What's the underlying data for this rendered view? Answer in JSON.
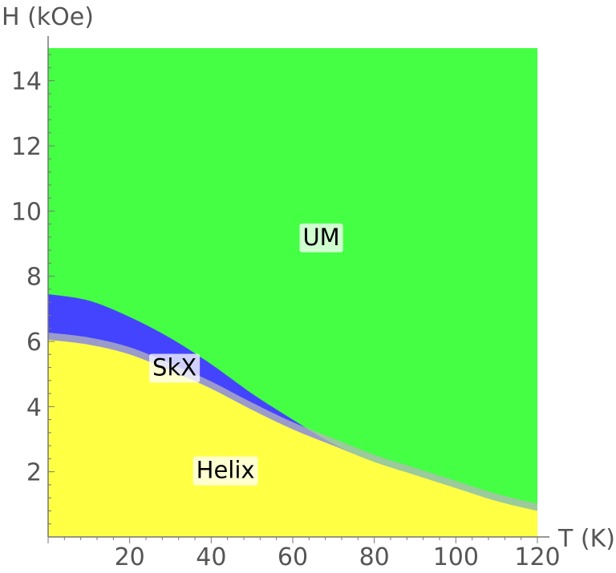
{
  "chart_data": {
    "type": "area",
    "xlabel": "T (K)",
    "ylabel": "H (kOe)",
    "xlim": [
      0,
      120
    ],
    "ylim": [
      0,
      15
    ],
    "x_ticks": [
      20,
      40,
      60,
      80,
      100,
      120
    ],
    "y_ticks": [
      2,
      4,
      6,
      8,
      10,
      12,
      14
    ],
    "colors": {
      "UM": "#44ff44",
      "SkX": "#4444ff",
      "Helix": "#ffff44",
      "SkX_edge": "#b8b8b8"
    },
    "region_labels": [
      {
        "text": "UM",
        "x": 67,
        "y": 9.2
      },
      {
        "text": "SkX",
        "x": 31,
        "y": 5.2
      },
      {
        "text": "Helix",
        "x": 43.5,
        "y": 2.05
      }
    ],
    "boundaries": {
      "helix_upper": {
        "x": [
          0,
          10,
          20,
          30,
          40,
          50,
          60,
          70,
          80,
          90,
          100,
          110,
          120
        ],
        "y": [
          6.05,
          5.9,
          5.6,
          5.1,
          4.55,
          3.9,
          3.3,
          2.8,
          2.3,
          1.9,
          1.5,
          1.1,
          0.8
        ]
      },
      "skx_upper": {
        "x": [
          0,
          10,
          20,
          30,
          40,
          50,
          60,
          70,
          80,
          90,
          100,
          110,
          120
        ],
        "y": [
          7.45,
          7.25,
          6.75,
          6.1,
          5.3,
          4.4,
          3.6,
          2.85,
          2.3,
          1.9,
          1.5,
          1.1,
          0.8
        ]
      }
    }
  }
}
